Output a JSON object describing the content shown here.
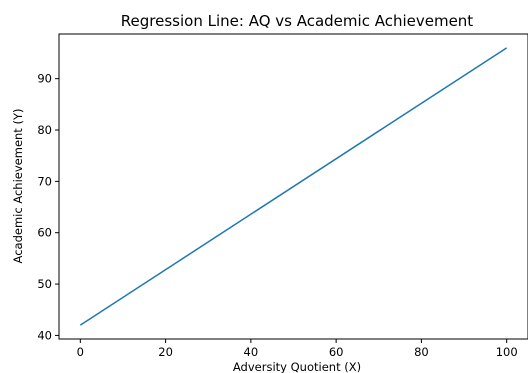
{
  "chart_data": {
    "type": "line",
    "title": "Regression Line: AQ vs Academic Achievement",
    "xlabel": "Adversity Quotient (X)",
    "ylabel": "Academic Achievement (Y)",
    "xlim": [
      -5,
      105
    ],
    "ylim": [
      39.3,
      98.7
    ],
    "xticks": [
      0,
      20,
      40,
      60,
      80,
      100
    ],
    "yticks": [
      40,
      50,
      60,
      70,
      80,
      90
    ],
    "grid": false,
    "series": [
      {
        "x": [
          0,
          100
        ],
        "y": [
          42.0,
          96.0
        ],
        "color": "#1f77b4"
      }
    ]
  }
}
